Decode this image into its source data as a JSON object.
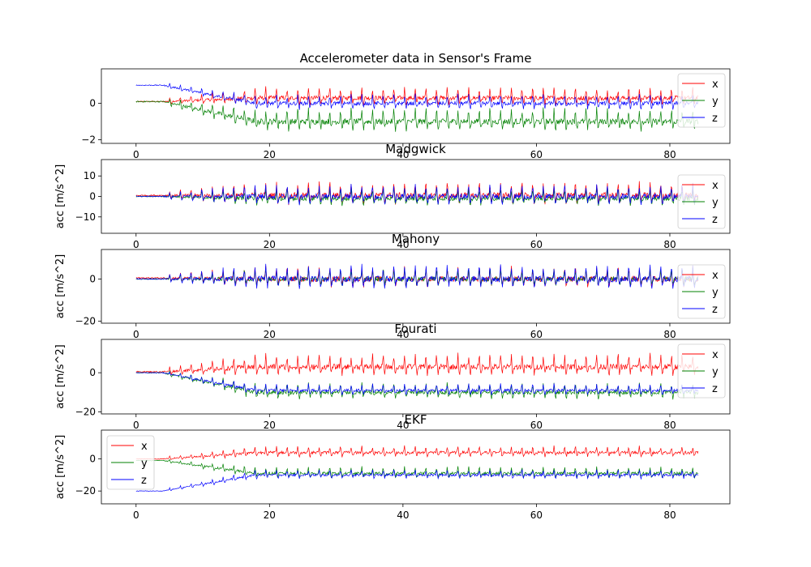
{
  "chart_data": [
    {
      "type": "line",
      "title": "Accelerometer data in Sensor's Frame",
      "ylabel": "",
      "xlim": [
        -5.2,
        89
      ],
      "ylim": [
        -2.2,
        1.9
      ],
      "xticks": [
        0,
        20,
        40,
        60,
        80
      ],
      "yticks": [
        -2,
        0
      ],
      "ytick_labels": [
        "−2",
        "0"
      ],
      "legend": "upper-right",
      "series": [
        {
          "name": "x",
          "color": "#ff0000",
          "start_level": 0.1,
          "walking_level": 0.3,
          "amplitude": 0.7
        },
        {
          "name": "y",
          "color": "#008000",
          "start_level": 0.1,
          "walking_level": -1.0,
          "amplitude": 0.9
        },
        {
          "name": "z",
          "color": "#0000ff",
          "start_level": 1.0,
          "walking_level": 0.0,
          "amplitude": 0.6
        }
      ]
    },
    {
      "type": "line",
      "title": "Madgwick",
      "ylabel": "acc [m/s^2]",
      "xlim": [
        -5.2,
        89
      ],
      "ylim": [
        -18,
        18
      ],
      "xticks": [
        0,
        20,
        40,
        60,
        80
      ],
      "yticks": [
        -10,
        0,
        10
      ],
      "ytick_labels": [
        "−10",
        "0",
        "10"
      ],
      "legend": "lower-right",
      "series": [
        {
          "name": "x",
          "color": "#ff0000",
          "start_level": 0.5,
          "walking_level": 0.5,
          "amplitude": 8
        },
        {
          "name": "y",
          "color": "#008000",
          "start_level": 0.0,
          "walking_level": -1.0,
          "amplitude": 6
        },
        {
          "name": "z",
          "color": "#0000ff",
          "start_level": 0.0,
          "walking_level": 0.0,
          "amplitude": 7
        }
      ]
    },
    {
      "type": "line",
      "title": "Mahony",
      "ylabel": "acc [m/s^2]",
      "xlim": [
        -5.2,
        89
      ],
      "ylim": [
        -21,
        14
      ],
      "xticks": [
        0,
        20,
        40,
        60,
        80
      ],
      "yticks": [
        -20,
        0
      ],
      "ytick_labels": [
        "−20",
        "0"
      ],
      "legend": "lower-right",
      "series": [
        {
          "name": "x",
          "color": "#ff0000",
          "start_level": 0.5,
          "walking_level": 0.0,
          "amplitude": 7
        },
        {
          "name": "y",
          "color": "#008000",
          "start_level": 0.0,
          "walking_level": 0.0,
          "amplitude": 6
        },
        {
          "name": "z",
          "color": "#0000ff",
          "start_level": 0.0,
          "walking_level": 0.0,
          "amplitude": 8
        }
      ]
    },
    {
      "type": "line",
      "title": "Fourati",
      "ylabel": "acc [m/s^2]",
      "xlim": [
        -5.2,
        89
      ],
      "ylim": [
        -21,
        17
      ],
      "xticks": [
        0,
        20,
        40,
        60,
        80
      ],
      "yticks": [
        -20,
        0
      ],
      "ytick_labels": [
        "−20",
        "0"
      ],
      "legend": "upper-right",
      "series": [
        {
          "name": "x",
          "color": "#ff0000",
          "start_level": 0.5,
          "walking_level": 3.0,
          "amplitude": 8
        },
        {
          "name": "y",
          "color": "#008000",
          "start_level": 0.0,
          "walking_level": -10.0,
          "amplitude": 6
        },
        {
          "name": "z",
          "color": "#0000ff",
          "start_level": 0.0,
          "walking_level": -9.0,
          "amplitude": 4
        }
      ]
    },
    {
      "type": "line",
      "title": "EKF",
      "ylabel": "acc [m/s^2]",
      "xlim": [
        -5.2,
        89
      ],
      "ylim": [
        -28,
        18
      ],
      "xticks": [
        0,
        20,
        40,
        60,
        80
      ],
      "yticks": [
        -20,
        0
      ],
      "ytick_labels": [
        "−20",
        "0"
      ],
      "legend": "upper-left",
      "series": [
        {
          "name": "x",
          "color": "#ff0000",
          "start_level": 0.0,
          "walking_level": 4.0,
          "amplitude": 5
        },
        {
          "name": "y",
          "color": "#008000",
          "start_level": -1.0,
          "walking_level": -9.0,
          "amplitude": 5
        },
        {
          "name": "z",
          "color": "#0000ff",
          "start_level": -20.0,
          "walking_level": -10.0,
          "amplitude": 4
        }
      ]
    }
  ]
}
